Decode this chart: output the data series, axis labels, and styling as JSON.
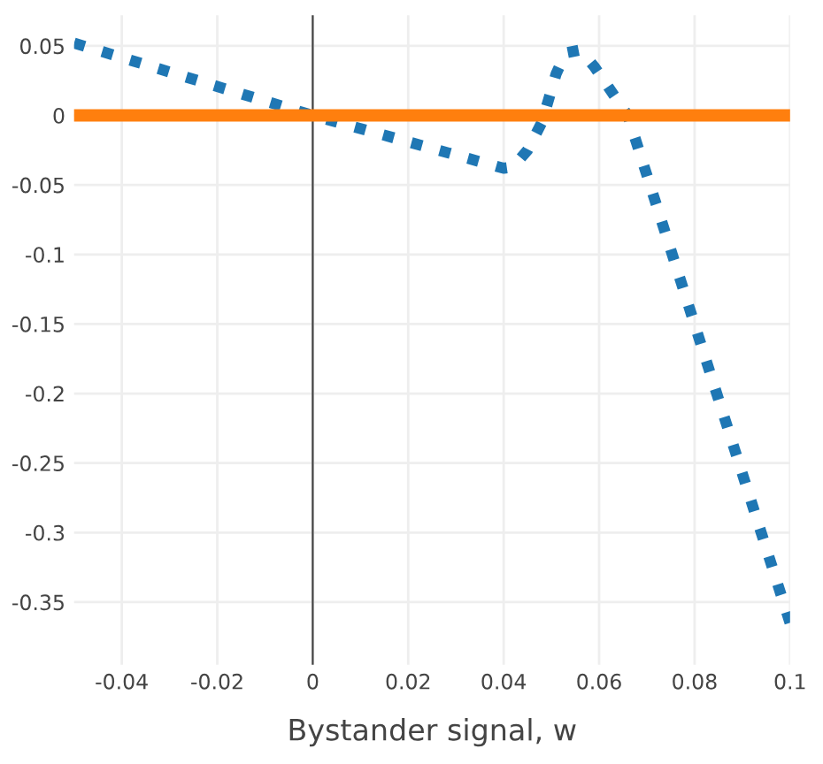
{
  "chart_data": {
    "type": "line",
    "xlabel": "Bystander signal, w",
    "xlim": [
      -0.05,
      0.1
    ],
    "ylim": [
      -0.395,
      0.072
    ],
    "xticks": [
      -0.04,
      -0.02,
      0,
      0.02,
      0.04,
      0.06,
      0.08,
      0.1
    ],
    "yticks": [
      0.05,
      0,
      -0.05,
      -0.1,
      -0.15,
      -0.2,
      -0.25,
      -0.3,
      -0.35
    ],
    "grid": true,
    "ref_lines": [
      {
        "axis": "x",
        "value": 0,
        "color": "#444444"
      }
    ],
    "series": [
      {
        "color": "#1f77b4",
        "line_style": "dotted",
        "x": [
          -0.05,
          0,
          0.04,
          0.042,
          0.045,
          0.048,
          0.051,
          0.053,
          0.056,
          0.059,
          0.062,
          0.066,
          0.1
        ],
        "values": [
          0.052,
          0,
          -0.038,
          -0.037,
          -0.025,
          -0.005,
          0.03,
          0.045,
          0.047,
          0.035,
          0.02,
          0,
          -0.365
        ]
      },
      {
        "color": "#ff7f0e",
        "line_style": "solid",
        "x": [
          -0.05,
          0.1
        ],
        "values": [
          0,
          0
        ]
      }
    ]
  }
}
